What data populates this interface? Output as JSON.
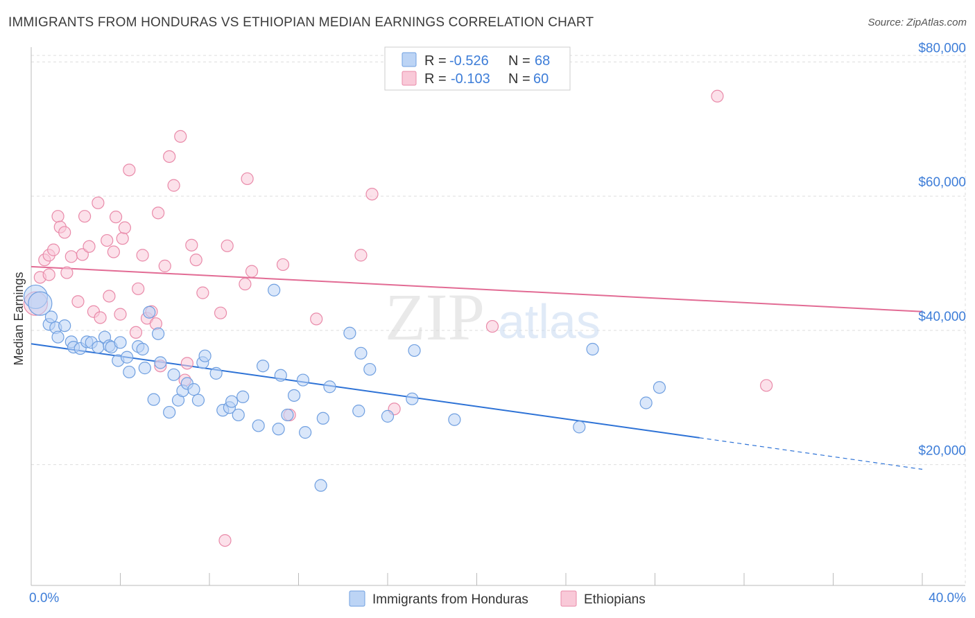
{
  "title": "IMMIGRANTS FROM HONDURAS VS ETHIOPIAN MEDIAN EARNINGS CORRELATION CHART",
  "source": "Source: ZipAtlas.com",
  "watermark": {
    "zip": "ZIP",
    "atlas": "atlas"
  },
  "colors": {
    "blue_fill": "#bcd4f5",
    "blue_stroke": "#6f9fe0",
    "blue_line": "#2d72d6",
    "pink_fill": "#f9c9d8",
    "pink_stroke": "#e98aa9",
    "pink_line": "#e26b94",
    "tick_text": "#3d7dd8",
    "grid": "#dddddd"
  },
  "stats": [
    {
      "r_label": "R =",
      "r": "-0.526",
      "n_label": "N =",
      "n": "68"
    },
    {
      "r_label": "R =",
      "r": "-0.103",
      "n_label": "N =",
      "n": "60"
    }
  ],
  "chart_data": {
    "type": "scatter",
    "xlabel": "",
    "ylabel": "Median Earnings",
    "xlim": [
      0,
      40
    ],
    "ylim": [
      2000,
      82000
    ],
    "x_tick_labels": [
      "0.0%",
      "40.0%"
    ],
    "y_ticks": [
      {
        "value": 20000,
        "label": "$20,000"
      },
      {
        "value": 40000,
        "label": "$40,000"
      },
      {
        "value": 60000,
        "label": "$60,000"
      },
      {
        "value": 80000,
        "label": "$80,000"
      }
    ],
    "legend_position": "bottom",
    "grid": true,
    "series": [
      {
        "name": "Immigrants from Honduras",
        "color": "blue",
        "trend": {
          "x0": 0,
          "y0": 38000,
          "x1": 30,
          "y1": 24000,
          "dash_to_x": 40,
          "dash_to_y": 19300
        },
        "points": [
          [
            0.2,
            45000,
            "big"
          ],
          [
            0.4,
            44000,
            "big"
          ],
          [
            0.8,
            40900
          ],
          [
            0.9,
            42000
          ],
          [
            1.1,
            40400
          ],
          [
            1.2,
            39000
          ],
          [
            1.5,
            40700
          ],
          [
            1.8,
            38300
          ],
          [
            1.9,
            37500
          ],
          [
            2.2,
            37300
          ],
          [
            2.5,
            38300
          ],
          [
            2.7,
            38200
          ],
          [
            3.0,
            37500
          ],
          [
            3.3,
            39000
          ],
          [
            3.5,
            37700
          ],
          [
            3.6,
            37500
          ],
          [
            3.9,
            35500
          ],
          [
            4.0,
            38200
          ],
          [
            4.3,
            36000
          ],
          [
            4.4,
            33800
          ],
          [
            4.8,
            37600
          ],
          [
            5.0,
            37200
          ],
          [
            5.1,
            34400
          ],
          [
            5.3,
            42700
          ],
          [
            5.5,
            29700
          ],
          [
            5.7,
            39500
          ],
          [
            5.8,
            35200
          ],
          [
            6.2,
            27800
          ],
          [
            6.4,
            33400
          ],
          [
            6.6,
            29600
          ],
          [
            6.8,
            31000
          ],
          [
            7.0,
            32100
          ],
          [
            7.3,
            31200
          ],
          [
            7.5,
            29600
          ],
          [
            7.7,
            35200
          ],
          [
            7.8,
            36200
          ],
          [
            8.3,
            33600
          ],
          [
            8.6,
            28100
          ],
          [
            8.9,
            28500
          ],
          [
            9.0,
            29400
          ],
          [
            9.3,
            27400
          ],
          [
            9.5,
            30100
          ],
          [
            10.2,
            25800
          ],
          [
            10.4,
            34700
          ],
          [
            10.9,
            46000
          ],
          [
            11.1,
            25300
          ],
          [
            11.2,
            33300
          ],
          [
            11.5,
            27400
          ],
          [
            11.8,
            30300
          ],
          [
            12.2,
            32600
          ],
          [
            12.3,
            24800
          ],
          [
            13.0,
            16900
          ],
          [
            13.1,
            26900
          ],
          [
            13.4,
            31600
          ],
          [
            14.3,
            39600
          ],
          [
            14.7,
            28000
          ],
          [
            14.8,
            36600
          ],
          [
            15.2,
            34200
          ],
          [
            16.0,
            27200
          ],
          [
            17.1,
            29800
          ],
          [
            17.2,
            37000
          ],
          [
            19.0,
            26700
          ],
          [
            24.6,
            25600
          ],
          [
            25.2,
            37200
          ],
          [
            27.6,
            29200
          ],
          [
            28.2,
            31500
          ]
        ]
      },
      {
        "name": "Ethiopians",
        "color": "pink",
        "trend": {
          "x0": 0,
          "y0": 49500,
          "x1": 40,
          "y1": 42800
        },
        "points": [
          [
            0.2,
            44000,
            "big"
          ],
          [
            0.4,
            47900
          ],
          [
            0.6,
            50500
          ],
          [
            0.8,
            51200
          ],
          [
            0.8,
            48300
          ],
          [
            1.0,
            52000
          ],
          [
            1.2,
            57000
          ],
          [
            1.3,
            55400
          ],
          [
            1.5,
            54600
          ],
          [
            1.6,
            48600
          ],
          [
            1.8,
            51000
          ],
          [
            2.1,
            44300
          ],
          [
            2.3,
            51300
          ],
          [
            2.4,
            57000
          ],
          [
            2.6,
            52500
          ],
          [
            2.8,
            42800
          ],
          [
            3.0,
            59000
          ],
          [
            3.1,
            41900
          ],
          [
            3.4,
            53400
          ],
          [
            3.5,
            45100
          ],
          [
            3.7,
            51700
          ],
          [
            3.8,
            56900
          ],
          [
            4.0,
            42400
          ],
          [
            4.1,
            53700
          ],
          [
            4.2,
            55300
          ],
          [
            4.4,
            63900
          ],
          [
            4.7,
            39700
          ],
          [
            4.8,
            46200
          ],
          [
            5.0,
            51200
          ],
          [
            5.2,
            41800
          ],
          [
            5.4,
            42800
          ],
          [
            5.6,
            41000
          ],
          [
            5.7,
            57500
          ],
          [
            5.8,
            34700
          ],
          [
            6.0,
            49600
          ],
          [
            6.2,
            65900
          ],
          [
            6.4,
            61600
          ],
          [
            6.7,
            68900
          ],
          [
            6.9,
            32600
          ],
          [
            7.0,
            35100
          ],
          [
            7.2,
            52700
          ],
          [
            7.4,
            50500
          ],
          [
            7.7,
            45600
          ],
          [
            8.5,
            42600
          ],
          [
            8.7,
            8700
          ],
          [
            8.8,
            52600
          ],
          [
            9.6,
            46900
          ],
          [
            9.7,
            62600
          ],
          [
            9.9,
            48800
          ],
          [
            11.3,
            49800
          ],
          [
            11.6,
            27400
          ],
          [
            12.8,
            41700
          ],
          [
            14.8,
            51200
          ],
          [
            15.3,
            60300
          ],
          [
            16.3,
            28300
          ],
          [
            20.7,
            40600
          ],
          [
            30.8,
            74900
          ],
          [
            33.0,
            31800
          ]
        ]
      }
    ]
  }
}
